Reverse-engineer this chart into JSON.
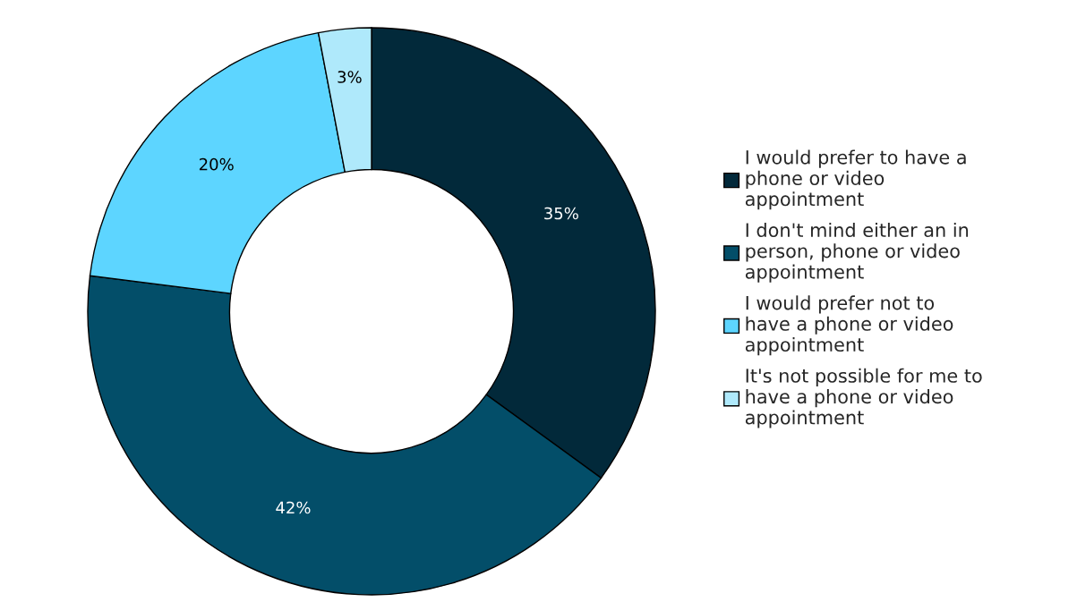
{
  "chart_data": {
    "type": "donut",
    "categories": [
      "I would prefer to have a phone or video appointment",
      "I don't mind either an in person, phone or video appointment",
      "I would prefer not to have a phone or video appointment",
      "It's not possible for me to have a phone or video appointment"
    ],
    "values": [
      35,
      42,
      20,
      3
    ],
    "colors": [
      "#02293a",
      "#034e69",
      "#5dd5ff",
      "#afe9fb"
    ],
    "value_labels": [
      "35%",
      "42%",
      "20%",
      "3%"
    ],
    "legend": "right"
  }
}
